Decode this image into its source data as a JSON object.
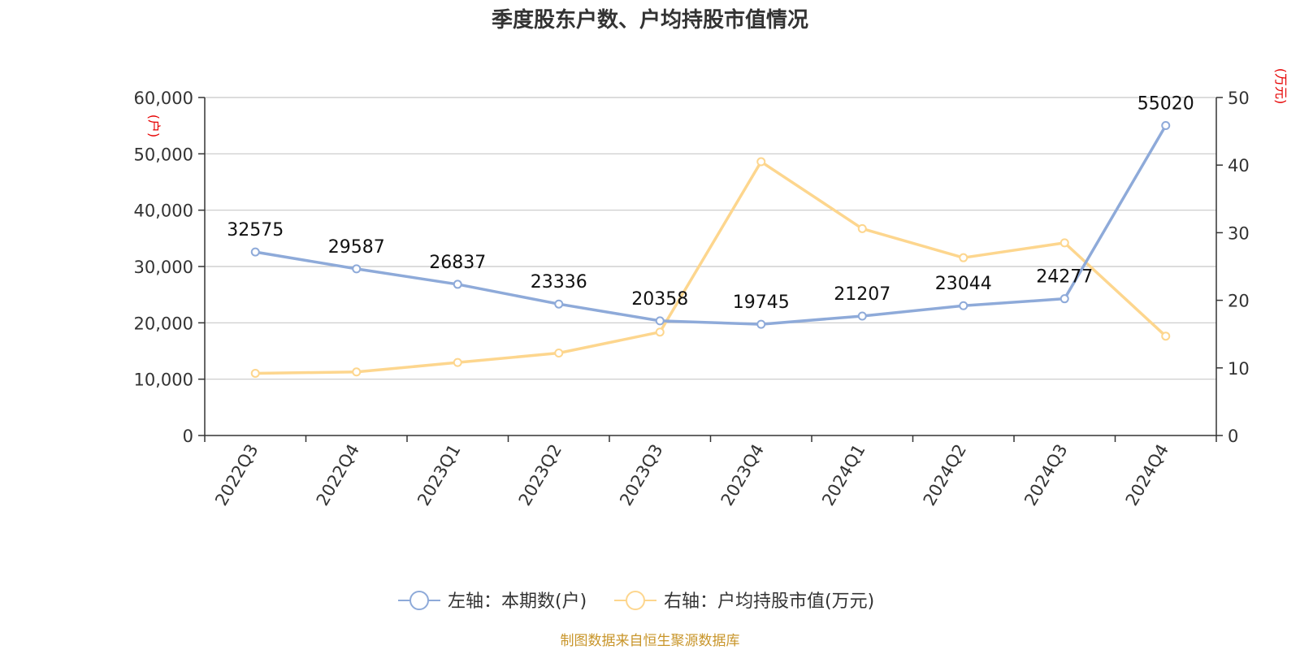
{
  "chart_data": {
    "type": "line",
    "title": "季度股东户数、户均持股市值情况",
    "categories": [
      "2022Q3",
      "2022Q4",
      "2023Q1",
      "2023Q2",
      "2023Q3",
      "2023Q4",
      "2024Q1",
      "2024Q2",
      "2024Q3",
      "2024Q4"
    ],
    "series": [
      {
        "name": "左轴：本期数(户)",
        "axis": "left",
        "color": "#8eaad9",
        "values": [
          32575,
          29587,
          26837,
          23336,
          20358,
          19745,
          21207,
          23044,
          24277,
          55020
        ],
        "data_labels": [
          "32575",
          "29587",
          "26837",
          "23336",
          "20358",
          "19745",
          "21207",
          "23044",
          "24277",
          "55020"
        ]
      },
      {
        "name": "右轴：户均持股市值(万元)",
        "axis": "right",
        "color": "#fdd68e",
        "values": [
          9.2,
          9.4,
          10.8,
          12.2,
          15.3,
          40.5,
          30.6,
          26.3,
          28.5,
          14.7
        ]
      }
    ],
    "left_axis": {
      "unit": "(户)",
      "ylim": [
        0,
        60000
      ],
      "ticks": [
        0,
        10000,
        20000,
        30000,
        40000,
        50000,
        60000
      ],
      "tick_labels": [
        "0",
        "10,000",
        "20,000",
        "30,000",
        "40,000",
        "50,000",
        "60,000"
      ]
    },
    "right_axis": {
      "unit": "(万元)",
      "ylim": [
        0,
        50
      ],
      "ticks": [
        0,
        10,
        20,
        30,
        40,
        50
      ],
      "tick_labels": [
        "0",
        "10",
        "20",
        "30",
        "40",
        "50"
      ]
    },
    "grid": true,
    "legend_position": "bottom-center",
    "source": "制图数据来自恒生聚源数据库"
  }
}
